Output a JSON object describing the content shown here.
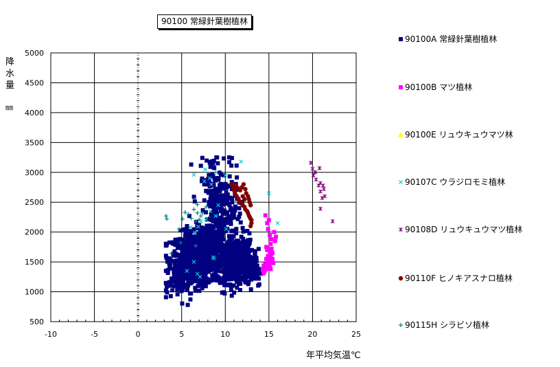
{
  "title": "90100 常緑針葉樹植林",
  "ylabel_chars": [
    "降",
    "水",
    "量"
  ],
  "ylabel_unit": "㎜",
  "xlabel": "年平均気温℃",
  "chart_data": {
    "type": "scatter",
    "xlim": [
      -10,
      25
    ],
    "ylim": [
      500,
      5000
    ],
    "xticks": [
      -10,
      -5,
      0,
      5,
      10,
      15,
      20,
      25
    ],
    "yticks": [
      500,
      1000,
      1500,
      2000,
      2500,
      3000,
      3500,
      4000,
      4500,
      5000
    ],
    "grid": true,
    "legend_position": "right",
    "series": [
      {
        "name": "90100A 常緑針葉樹植林",
        "color": "#000080",
        "marker": "square",
        "clusters": [
          {
            "cx": 6.5,
            "cy": 1550,
            "sx": 1.4,
            "sy": 220,
            "n": 650
          },
          {
            "cx": 11.2,
            "cy": 1500,
            "sx": 1.0,
            "sy": 180,
            "n": 500
          },
          {
            "cx": 9.5,
            "cy": 2150,
            "sx": 1.1,
            "sy": 420,
            "n": 250
          },
          {
            "cx": 8.8,
            "cy": 2850,
            "sx": 0.9,
            "sy": 220,
            "n": 80
          },
          {
            "cx": 4.5,
            "cy": 1150,
            "sx": 0.9,
            "sy": 130,
            "n": 70
          },
          {
            "cx": 7.8,
            "cy": 1800,
            "sx": 0.9,
            "sy": 150,
            "n": 120
          },
          {
            "cx": 13.2,
            "cy": 1350,
            "sx": 0.5,
            "sy": 130,
            "n": 60
          }
        ]
      },
      {
        "name": "90100B マツ植林",
        "color": "#FF00FF",
        "marker": "square",
        "points": [
          [
            14.6,
            2280
          ],
          [
            14.8,
            2150
          ],
          [
            14.9,
            2050
          ],
          [
            15.1,
            1950
          ],
          [
            15.3,
            1880
          ],
          [
            15.2,
            1800
          ],
          [
            15.0,
            1720
          ],
          [
            15.1,
            1680
          ],
          [
            15.3,
            1640
          ],
          [
            15.2,
            1600
          ],
          [
            15.0,
            1560
          ],
          [
            14.9,
            1520
          ],
          [
            14.8,
            1480
          ],
          [
            14.7,
            1450
          ],
          [
            14.6,
            1420
          ],
          [
            14.5,
            1400
          ],
          [
            14.6,
            1370
          ],
          [
            14.5,
            1340
          ],
          [
            14.4,
            1310
          ],
          [
            15.4,
            1550
          ],
          [
            15.2,
            1500
          ],
          [
            15.0,
            1460
          ],
          [
            15.1,
            1420
          ],
          [
            14.9,
            1390
          ],
          [
            15.6,
            2000
          ],
          [
            15.8,
            1920
          ],
          [
            15.7,
            1850
          ],
          [
            14.7,
            1750
          ],
          [
            14.8,
            1700
          ],
          [
            15.3,
            1720
          ],
          [
            15.4,
            1650
          ],
          [
            14.9,
            1600
          ],
          [
            14.7,
            1550
          ],
          [
            15.5,
            1480
          ],
          [
            14.6,
            1460
          ],
          [
            14.8,
            1420
          ],
          [
            15.2,
            1380
          ],
          [
            14.4,
            1440
          ],
          [
            14.3,
            1380
          ],
          [
            15.0,
            2200
          ]
        ]
      },
      {
        "name": "90100E リュウキュウマツ林",
        "color": "#FFFF00",
        "marker": "triangle",
        "points": []
      },
      {
        "name": "90107C ウラジロモミ植林",
        "color": "#00CCCC",
        "marker": "x",
        "points": [
          [
            11.8,
            3180
          ],
          [
            10.0,
            2950
          ],
          [
            9.0,
            3000
          ],
          [
            8.2,
            2900
          ],
          [
            7.6,
            2850
          ],
          [
            6.4,
            2960
          ],
          [
            8.3,
            2350
          ],
          [
            8.9,
            2270
          ],
          [
            7.8,
            2210
          ],
          [
            7.2,
            2180
          ],
          [
            6.0,
            2080
          ],
          [
            6.5,
            1980
          ],
          [
            6.9,
            2090
          ],
          [
            15.0,
            2650
          ],
          [
            16.0,
            2150
          ],
          [
            8.6,
            1580
          ],
          [
            8.7,
            1560
          ],
          [
            6.4,
            1500
          ],
          [
            5.6,
            1350
          ],
          [
            7.1,
            1250
          ],
          [
            6.8,
            1300
          ],
          [
            10.1,
            2050
          ],
          [
            9.2,
            2450
          ],
          [
            8.4,
            2800
          ],
          [
            7.7,
            3050
          ]
        ]
      },
      {
        "name": "90108D リュウキュウマツ植林",
        "color": "#800080",
        "marker": "star",
        "points": [
          [
            19.8,
            3160
          ],
          [
            20.0,
            3060
          ],
          [
            20.3,
            3000
          ],
          [
            20.1,
            2950
          ],
          [
            20.8,
            3070
          ],
          [
            20.4,
            2880
          ],
          [
            20.9,
            2820
          ],
          [
            21.2,
            2780
          ],
          [
            21.3,
            2720
          ],
          [
            20.7,
            2780
          ],
          [
            20.9,
            2680
          ],
          [
            21.1,
            2570
          ],
          [
            21.4,
            2600
          ],
          [
            20.9,
            2390
          ],
          [
            22.3,
            2180
          ]
        ]
      },
      {
        "name": "90110F ヒノキアスナロ植林",
        "color": "#800000",
        "marker": "circle",
        "points": [
          [
            10.7,
            2800
          ],
          [
            10.9,
            2750
          ],
          [
            11.0,
            2700
          ],
          [
            11.1,
            2650
          ],
          [
            11.3,
            2600
          ],
          [
            11.5,
            2560
          ],
          [
            11.6,
            2520
          ],
          [
            11.8,
            2480
          ],
          [
            12.0,
            2450
          ],
          [
            12.2,
            2420
          ],
          [
            12.3,
            2380
          ],
          [
            12.5,
            2350
          ],
          [
            12.6,
            2320
          ],
          [
            12.7,
            2280
          ],
          [
            12.8,
            2250
          ],
          [
            12.9,
            2220
          ],
          [
            13.0,
            2200
          ],
          [
            13.0,
            2150
          ],
          [
            12.9,
            2100
          ],
          [
            12.1,
            2800
          ],
          [
            12.3,
            2720
          ],
          [
            12.4,
            2650
          ],
          [
            12.6,
            2600
          ],
          [
            12.7,
            2550
          ],
          [
            12.8,
            2500
          ],
          [
            12.9,
            2450
          ],
          [
            11.9,
            2750
          ],
          [
            11.7,
            2700
          ],
          [
            11.4,
            2740
          ],
          [
            11.2,
            2780
          ],
          [
            12.0,
            2600
          ],
          [
            12.2,
            2550
          ]
        ]
      },
      {
        "name": "90115H シラビソ植林",
        "color": "#008080",
        "marker": "plus",
        "points": [
          [
            3.2,
            2270
          ],
          [
            3.3,
            2220
          ],
          [
            4.7,
            2050
          ],
          [
            5.1,
            2220
          ],
          [
            5.8,
            2300
          ],
          [
            6.4,
            2380
          ],
          [
            6.8,
            2320
          ],
          [
            7.2,
            2270
          ],
          [
            7.4,
            2320
          ],
          [
            7.8,
            2420
          ],
          [
            6.8,
            2460
          ],
          [
            6.1,
            2230
          ],
          [
            6.6,
            2180
          ],
          [
            5.4,
            2330
          ],
          [
            7.0,
            2210
          ],
          [
            4.9,
            1820
          ],
          [
            3.8,
            1640
          ],
          [
            6.6,
            1770
          ]
        ]
      }
    ]
  }
}
